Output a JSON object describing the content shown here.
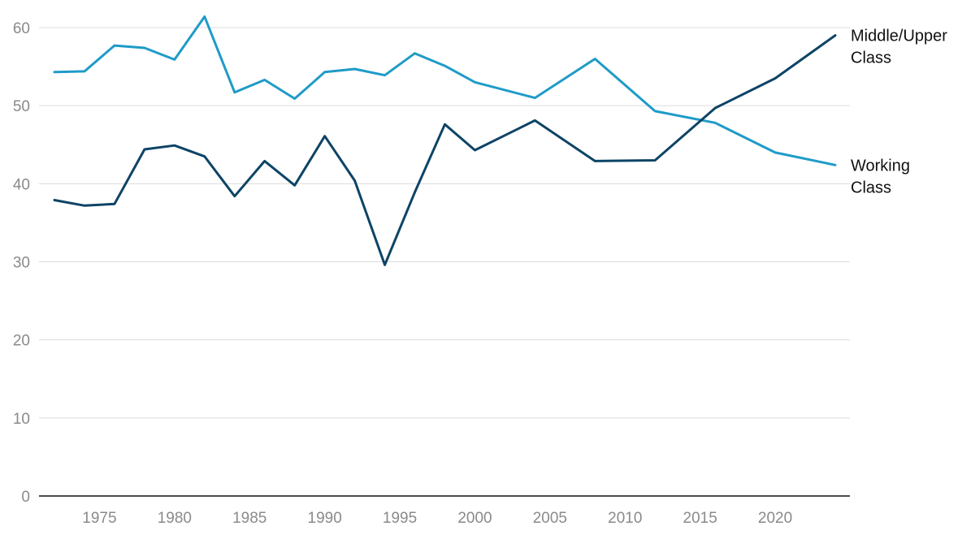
{
  "chart_data": {
    "type": "line",
    "title": "",
    "xlabel": "",
    "ylabel": "",
    "xlim": [
      1971,
      2025
    ],
    "ylim": [
      0,
      62
    ],
    "x_ticks": [
      1975,
      1980,
      1985,
      1990,
      1995,
      2000,
      2005,
      2010,
      2015,
      2020
    ],
    "y_ticks": [
      0,
      10,
      20,
      30,
      40,
      50,
      60
    ],
    "grid": true,
    "legend": "direct labels at line ends",
    "series": [
      {
        "name": "Working Class",
        "label_lines": [
          "Working",
          "Class"
        ],
        "color": "#1f9bc8",
        "x": [
          1972,
          1974,
          1976,
          1978,
          1980,
          1982,
          1984,
          1986,
          1988,
          1990,
          1992,
          1994,
          1996,
          1998,
          2000,
          2004,
          2008,
          2012,
          2016,
          2020,
          2024
        ],
        "y": [
          54.3,
          54.4,
          57.7,
          57.4,
          55.9,
          61.4,
          51.7,
          53.3,
          50.9,
          54.3,
          54.7,
          53.9,
          56.7,
          55.1,
          53.0,
          51.0,
          56.0,
          49.3,
          47.8,
          44.0,
          42.4
        ]
      },
      {
        "name": "Middle/Upper Class",
        "label_lines": [
          "Middle/Upper",
          "Class"
        ],
        "color": "#0d4466",
        "x": [
          1972,
          1974,
          1976,
          1978,
          1980,
          1982,
          1984,
          1986,
          1988,
          1990,
          1992,
          1994,
          1996,
          1998,
          2000,
          2004,
          2008,
          2012,
          2016,
          2020,
          2024
        ],
        "y": [
          37.9,
          37.2,
          37.4,
          44.4,
          44.9,
          43.5,
          38.4,
          42.9,
          39.8,
          46.1,
          40.4,
          29.6,
          38.9,
          47.6,
          44.3,
          48.1,
          42.9,
          43.0,
          49.7,
          53.5,
          59.0
        ]
      }
    ]
  }
}
